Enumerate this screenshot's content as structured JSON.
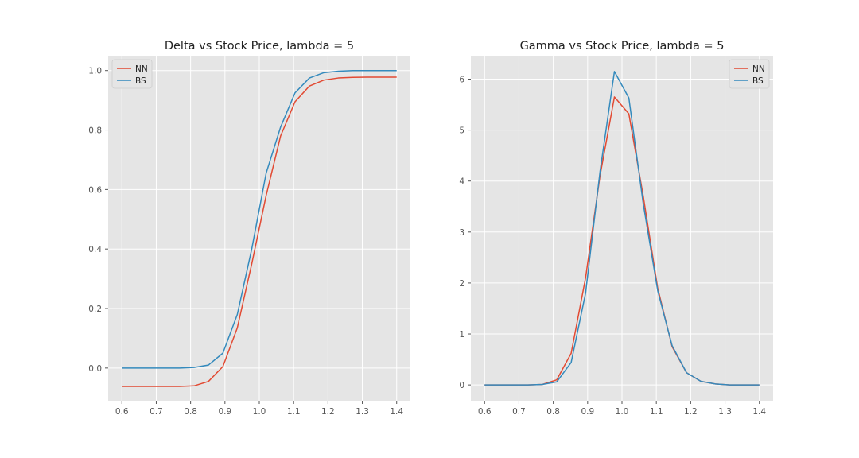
{
  "chart_data": [
    {
      "type": "line",
      "title": "Delta vs Stock Price, lambda = 5",
      "xlabel": "",
      "ylabel": "",
      "xlim": [
        0.56,
        1.44
      ],
      "ylim": [
        -0.11,
        1.05
      ],
      "xticks": [
        0.6,
        0.7,
        0.8,
        0.9,
        1.0,
        1.1,
        1.2,
        1.3,
        1.4
      ],
      "xtick_labels": [
        "0.6",
        "0.7",
        "0.8",
        "0.9",
        "1.0",
        "1.1",
        "1.2",
        "1.3",
        "1.4"
      ],
      "yticks": [
        0.0,
        0.2,
        0.4,
        0.6,
        0.8,
        1.0
      ],
      "ytick_labels": [
        "0.0",
        "0.2",
        "0.4",
        "0.6",
        "0.8",
        "1.0"
      ],
      "grid": true,
      "legend_position": "top-left",
      "x": [
        0.6,
        0.642,
        0.684,
        0.726,
        0.768,
        0.81,
        0.852,
        0.894,
        0.936,
        0.978,
        1.02,
        1.062,
        1.104,
        1.146,
        1.188,
        1.23,
        1.272,
        1.314,
        1.356,
        1.4
      ],
      "series": [
        {
          "name": "NN",
          "color": "#E24A33",
          "values": [
            -0.062,
            -0.062,
            -0.062,
            -0.062,
            -0.062,
            -0.06,
            -0.045,
            0.005,
            0.135,
            0.35,
            0.58,
            0.78,
            0.895,
            0.948,
            0.968,
            0.975,
            0.977,
            0.978,
            0.978,
            0.978
          ]
        },
        {
          "name": "BS",
          "color": "#348ABD",
          "values": [
            0.0,
            0.0,
            0.0,
            0.0,
            0.0,
            0.002,
            0.01,
            0.05,
            0.18,
            0.4,
            0.655,
            0.81,
            0.925,
            0.975,
            0.993,
            0.998,
            1.0,
            1.0,
            1.0,
            1.0
          ]
        }
      ]
    },
    {
      "type": "line",
      "title": "Gamma vs Stock Price, lambda = 5",
      "xlabel": "",
      "ylabel": "",
      "xlim": [
        0.56,
        1.44
      ],
      "ylim": [
        -0.31,
        6.46
      ],
      "xticks": [
        0.6,
        0.7,
        0.8,
        0.9,
        1.0,
        1.1,
        1.2,
        1.3,
        1.4
      ],
      "xtick_labels": [
        "0.6",
        "0.7",
        "0.8",
        "0.9",
        "1.0",
        "1.1",
        "1.2",
        "1.3",
        "1.4"
      ],
      "yticks": [
        0,
        1,
        2,
        3,
        4,
        5,
        6
      ],
      "ytick_labels": [
        "0",
        "1",
        "2",
        "3",
        "4",
        "5",
        "6"
      ],
      "grid": true,
      "legend_position": "top-right",
      "x": [
        0.6,
        0.642,
        0.684,
        0.726,
        0.768,
        0.81,
        0.852,
        0.894,
        0.936,
        0.978,
        1.02,
        1.062,
        1.104,
        1.146,
        1.188,
        1.23,
        1.272,
        1.314,
        1.356,
        1.4
      ],
      "series": [
        {
          "name": "NN",
          "color": "#E24A33",
          "values": [
            0.0,
            0.0,
            0.0,
            0.0,
            0.01,
            0.1,
            0.62,
            2.1,
            4.1,
            5.65,
            5.32,
            3.7,
            1.9,
            0.75,
            0.24,
            0.07,
            0.02,
            0.0,
            0.0,
            0.0
          ]
        },
        {
          "name": "BS",
          "color": "#348ABD",
          "values": [
            0.0,
            0.0,
            0.0,
            0.0,
            0.01,
            0.06,
            0.44,
            1.8,
            4.18,
            6.15,
            5.63,
            3.55,
            1.85,
            0.77,
            0.24,
            0.07,
            0.02,
            0.0,
            0.0,
            0.0
          ]
        }
      ]
    }
  ]
}
